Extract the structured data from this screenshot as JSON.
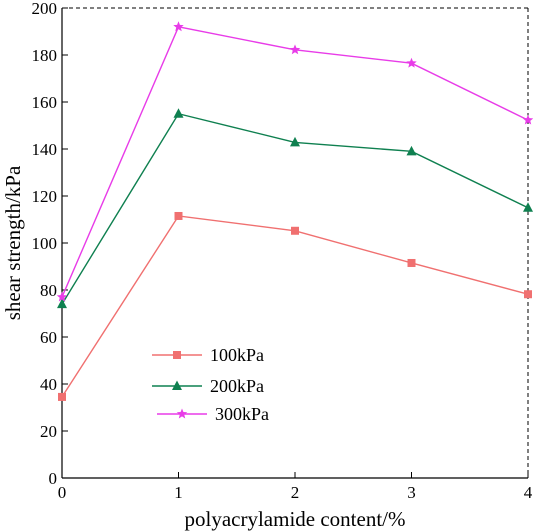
{
  "chart_data": {
    "type": "line",
    "title": "",
    "xlabel": "polyacrylamide content/%",
    "ylabel": "shear strength/kPa",
    "x": [
      0,
      1,
      2,
      3,
      4
    ],
    "xticks": [
      "0",
      "1",
      "2",
      "3",
      "4"
    ],
    "yticks": [
      "0",
      "20",
      "40",
      "60",
      "80",
      "100",
      "120",
      "140",
      "160",
      "180",
      "200"
    ],
    "xlim": [
      0,
      4
    ],
    "ylim": [
      0,
      200
    ],
    "grid": false,
    "legend_position": "lower-center",
    "series": [
      {
        "name": "100kPa",
        "values": [
          34.5,
          111.5,
          105.2,
          91.5,
          78.2
        ],
        "color": "#f07070",
        "marker": "square"
      },
      {
        "name": "200kPa",
        "values": [
          74,
          155,
          142.8,
          139,
          115
        ],
        "color": "#0f8050",
        "marker": "triangle"
      },
      {
        "name": "300kPa",
        "values": [
          77,
          192,
          182.2,
          176.5,
          152.3
        ],
        "color": "#e83ce8",
        "marker": "star"
      }
    ]
  }
}
